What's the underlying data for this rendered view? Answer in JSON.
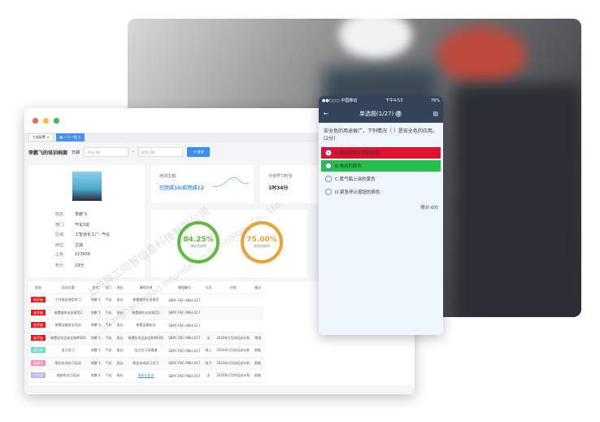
{
  "window": {
    "tabs": [
      {
        "label": "工具配置"
      },
      {
        "label": "一人一档"
      }
    ],
    "page_title": "李鹏飞的培训档案",
    "date_label": "日期",
    "start_placeholder": "开始日期",
    "end_placeholder": "结束日期",
    "date_sep": "-",
    "query_button": "查询"
  },
  "profile": {
    "fields": [
      {
        "k": "姓名:",
        "v": "李鹏飞"
      },
      {
        "k": "部门:",
        "v": "气化1班"
      },
      {
        "k": "区域:",
        "v": "工智道化工厂: 气化"
      },
      {
        "k": "岗位:",
        "v": "主操"
      },
      {
        "k": "工号:",
        "v": "123456"
      },
      {
        "k": "积分:",
        "v": "19分"
      }
    ]
  },
  "stats": {
    "topic_label": "培训主题:",
    "topic_value": "已完成10/应完成12",
    "hours_label": "计划学习时长",
    "hours_value": "1时34分",
    "completion": {
      "value": "84.25%",
      "label": "课程完成率",
      "percent": 84.25,
      "color": "#5cbf3a"
    },
    "pass": {
      "value": "75.00%",
      "label": "测验合格率",
      "percent": 75,
      "color": "#f0a032"
    }
  },
  "table": {
    "headers": [
      "状态",
      "培训主题",
      "姓名",
      "部门",
      "岗位",
      "课程名称",
      "课程编号",
      "方式",
      "计划",
      "备注"
    ],
    "rows": [
      {
        "status": "未开始",
        "sc": "#f01818",
        "topic": "工作报告使用学习",
        "name": "李鹏飞",
        "dept": "气化",
        "post": "班长",
        "course": "装置操作业务规范",
        "code": "SBPC-PEC-MEH-017",
        "mode": "",
        "plan": "",
        "note": ""
      },
      {
        "status": "未开始",
        "sc": "#f01818",
        "topic": "装置操作业务规范2",
        "name": "李鹏飞",
        "dept": "气化",
        "post": "班长",
        "course": "装置操作业务规范2",
        "code": "SBPC-PEC-MEH-017",
        "mode": "",
        "plan": "",
        "note": ""
      },
      {
        "status": "未开始",
        "sc": "#f01818",
        "topic": "装置运输安全培训",
        "name": "李鹏飞",
        "dept": "气化",
        "post": "班长",
        "course": "装置运输安全",
        "code": "SBPC-PEC-MEH-017",
        "mode": "",
        "plan": "",
        "note": ""
      },
      {
        "status": "未开始",
        "sc": "#f01818",
        "topic": "装置化学品安全和MSDS",
        "name": "李鹏飞",
        "dept": "气化",
        "post": "班长",
        "course": "装置化学品安全和MSDS",
        "code": "SBPC-PEC-MEH-017",
        "mode": "无",
        "plan": "2020年1月份培训计划",
        "note": "常规"
      },
      {
        "status": "进行中",
        "sc": "#6fdcc8",
        "topic": "金工实习",
        "name": "李鹏飞",
        "dept": "气化",
        "post": "班长",
        "course": "金工实习采摘课",
        "code": "SBPC-PEC-MEH-017",
        "mode": "线上",
        "plan": "2020年1月份培训计划",
        "note": "职能"
      },
      {
        "status": "延期中",
        "sc": "#f78fb8",
        "topic": "氧化车间实习培训",
        "name": "李鹏飞",
        "dept": "气化",
        "post": "班长",
        "course": "氧化车间实习学习",
        "code": "SBPC-PEC-MEH-017",
        "mode": "线下",
        "plan": "2020年1月份培训计划",
        "note": "职能"
      },
      {
        "status": "已完成",
        "sc": "#b8b6f5",
        "topic": "装卸车实习培训",
        "name": "李鹏飞",
        "dept": "气化",
        "post": "班长",
        "course": "装卸车复训",
        "code": "SBPC-PEC-MEH-017",
        "mode": "无",
        "plan": "2020年1月份培训计划",
        "note": "职能"
      }
    ]
  },
  "phone": {
    "carrier": "●●○○○ 中国移动",
    "time": "下午4:53",
    "battery": "76%",
    "title": "单选题(1/27)",
    "question": "安全色的用途很广，下列情况（ ）是安全色的应用。(2分)",
    "options": [
      {
        "label": "A.警告等提示牌的颜色",
        "bg": "#e0102e",
        "selected": true
      },
      {
        "label": "B.电线的颜色",
        "bg": "#22c24a",
        "selected": false
      },
      {
        "label": "C.氮气瓶上涂的黄色",
        "bg": "",
        "selected": false
      },
      {
        "label": "D.紧急停止按钮的颜色",
        "bg": "",
        "selected": false
      }
    ],
    "score": "得分:0分"
  },
  "watermark": {
    "cn": "上海异工同智信息科技有限公司",
    "en": "Shanghai Inroad Information Technology Co., Ltd."
  }
}
